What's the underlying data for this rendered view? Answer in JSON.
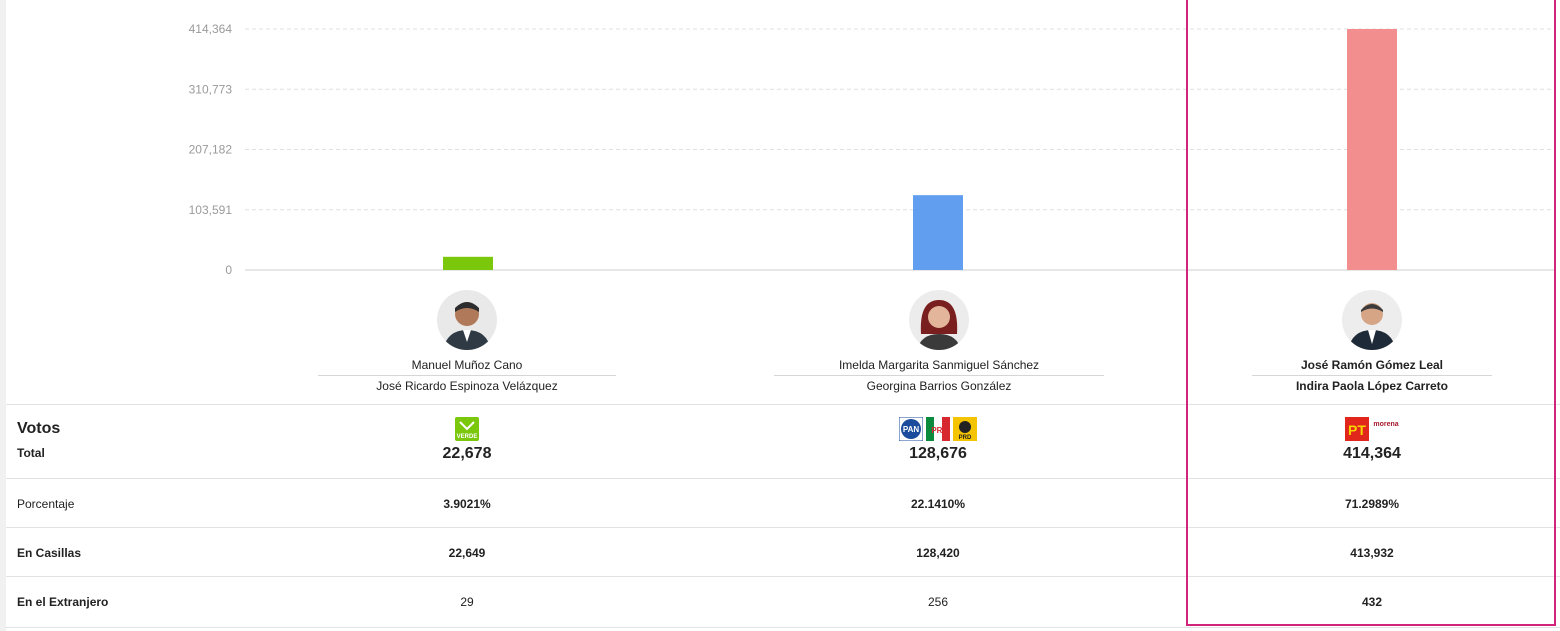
{
  "chart_data": {
    "type": "bar",
    "categories": [
      "Manuel Muñoz Cano",
      "Imelda Margarita Sanmiguel Sánchez",
      "José Ramón Gómez Leal"
    ],
    "values": [
      22678,
      128676,
      414364
    ],
    "colors": [
      "#7ac70c",
      "#629ef0",
      "#f28e8e"
    ],
    "yticks": [
      "414,364",
      "310,773",
      "207,182",
      "103,591",
      "0"
    ],
    "ytick_values": [
      414364,
      310773,
      207182,
      103591,
      0
    ],
    "ylim": [
      0,
      414364
    ]
  },
  "candidates": [
    {
      "name": "Manuel Muñoz Cano",
      "substitute": "José Ricardo Espinoza Velázquez",
      "logo": "verde-logo",
      "total": "22,678",
      "percent": "3.9021%",
      "casillas": "22,649",
      "extranjero": "29"
    },
    {
      "name": "Imelda Margarita Sanmiguel Sánchez",
      "substitute": "Georgina Barrios González",
      "logo": "pan-pri-prd-logos",
      "total": "128,676",
      "percent": "22.1410%",
      "casillas": "128,420",
      "extranjero": "256"
    },
    {
      "name": "José Ramón Gómez Leal",
      "substitute": "Indira Paola López Carreto",
      "logo": "pt-morena-logos",
      "total": "414,364",
      "percent": "71.2989%",
      "casillas": "413,932",
      "extranjero": "432"
    }
  ],
  "labels": {
    "votos": "Votos",
    "total": "Total",
    "porcentaje": "Porcentaje",
    "casillas": "En Casillas",
    "extranjero": "En el Extranjero",
    "verde": "VERDE",
    "pan": "PAN",
    "pri": "PRI",
    "prd": "PRD",
    "pt": "PT",
    "morena": "morena"
  },
  "accent": "#d3247d"
}
